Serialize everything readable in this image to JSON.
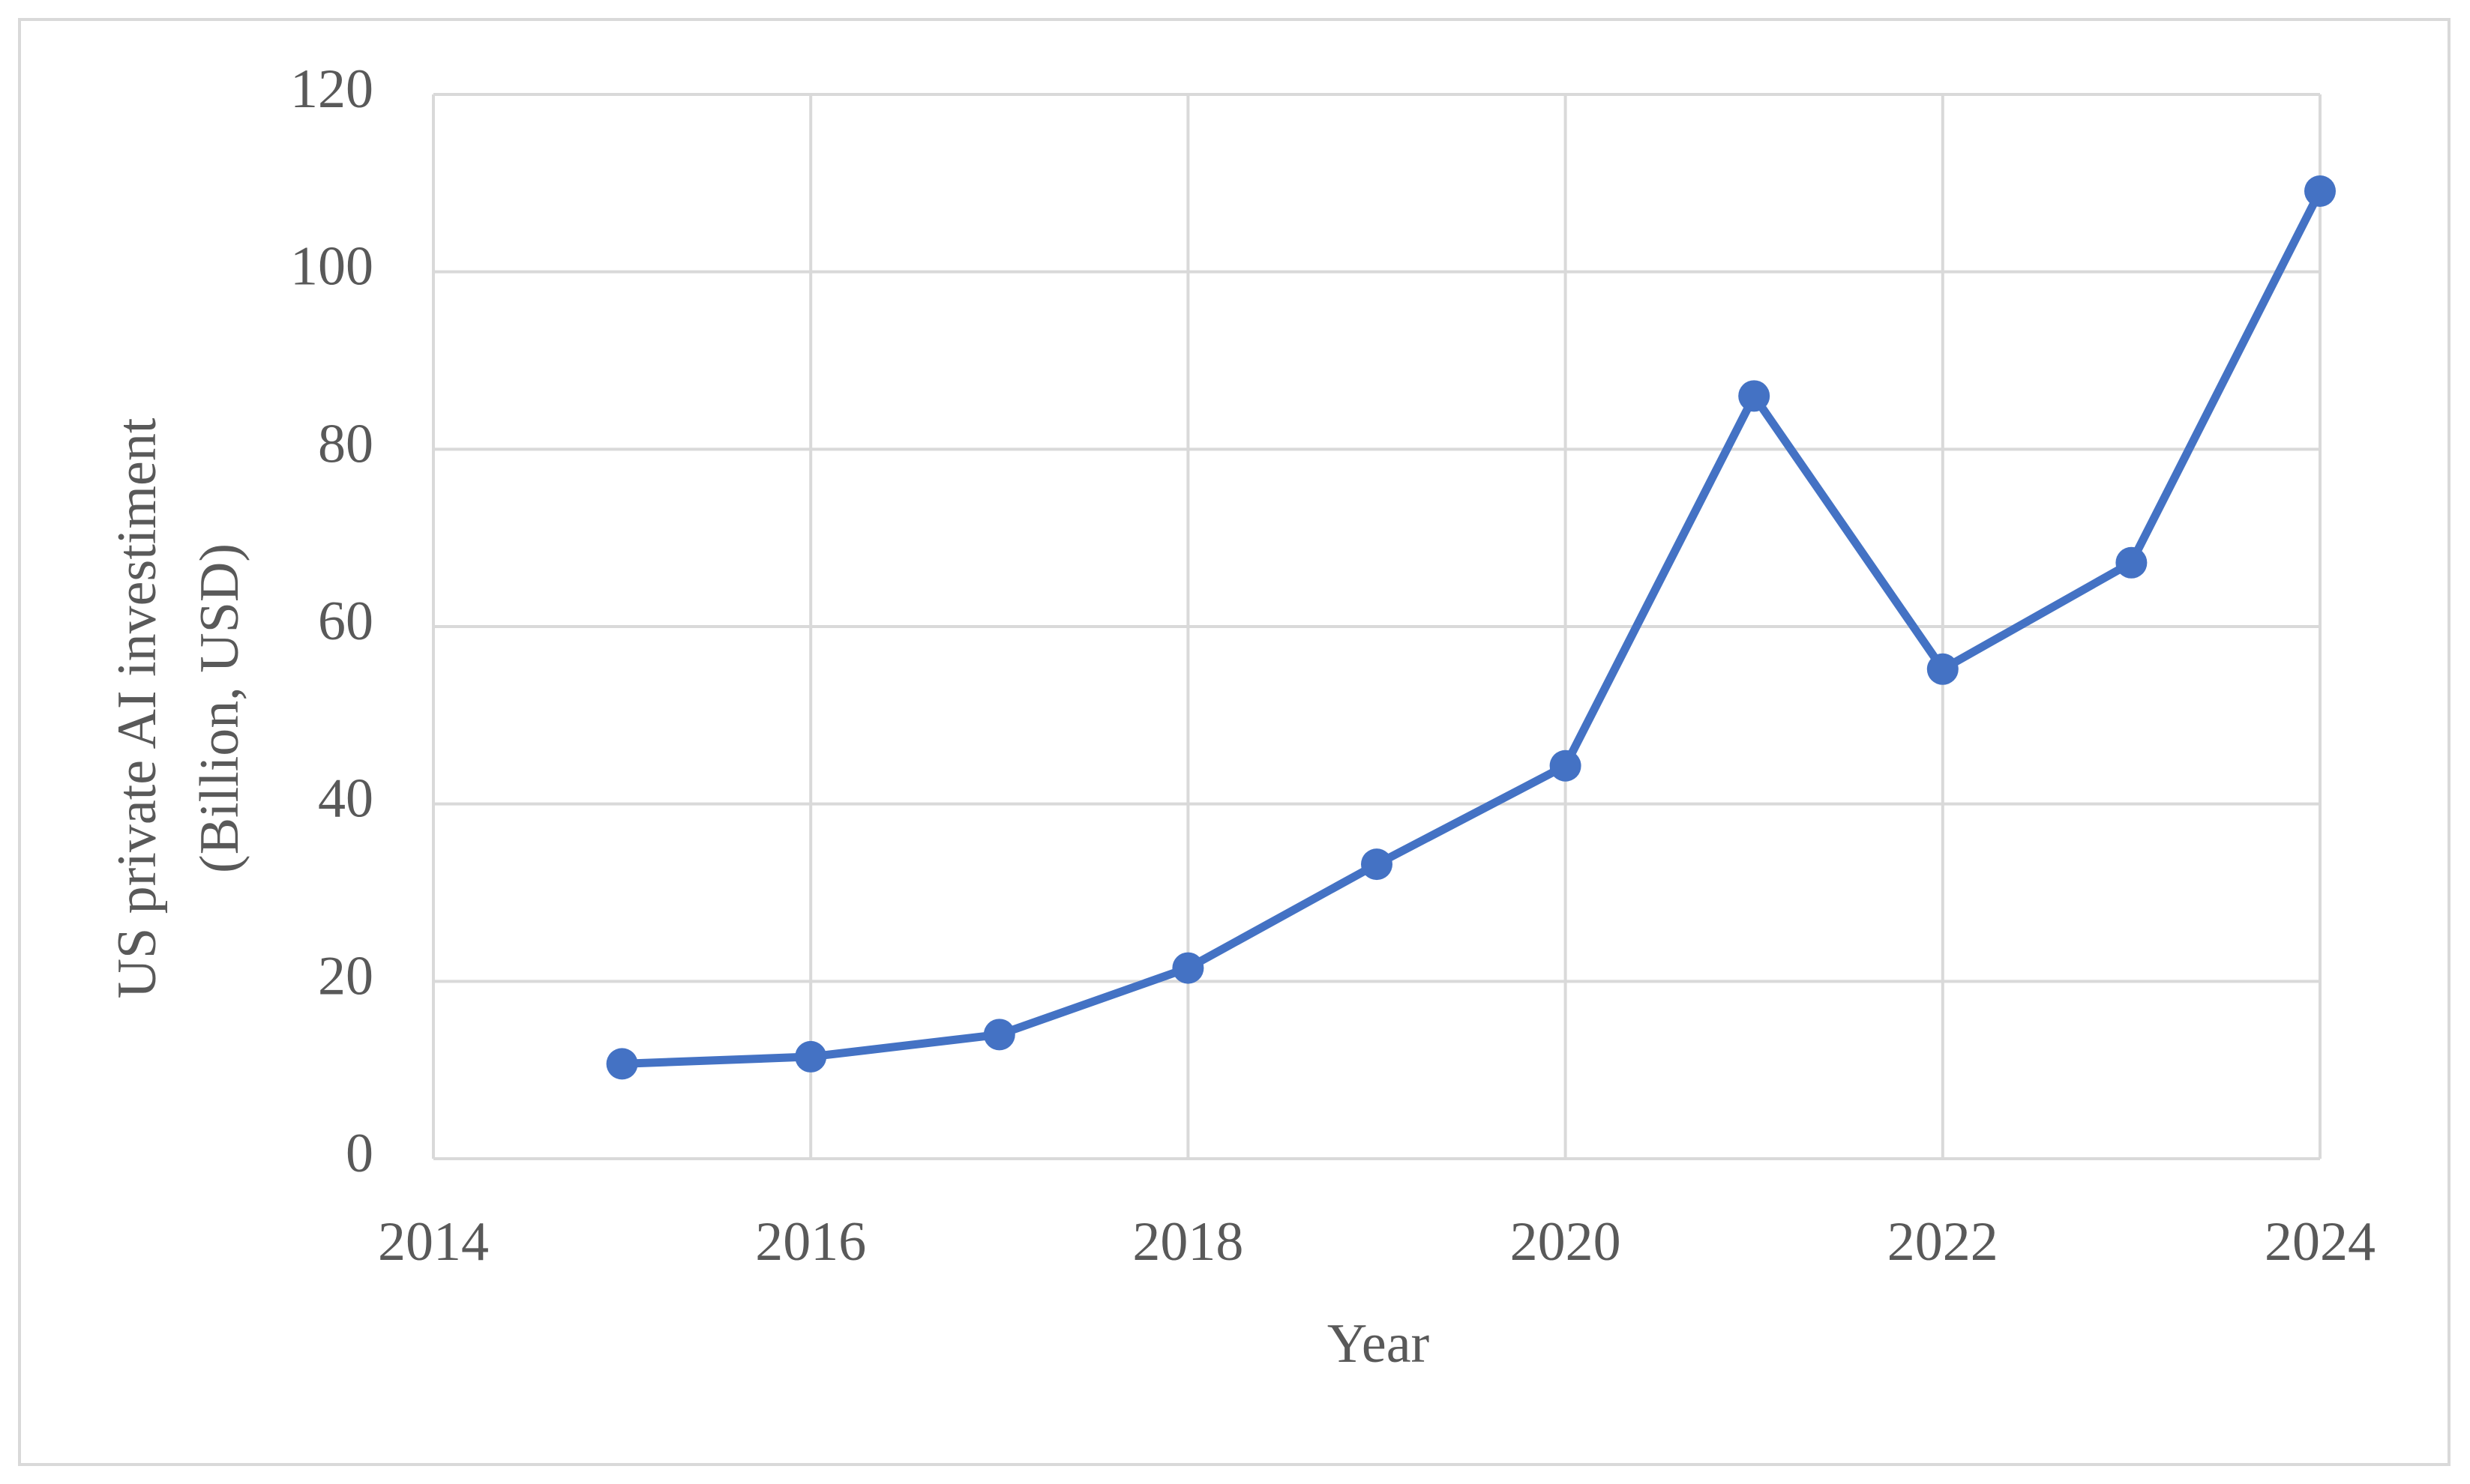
{
  "chart_data": {
    "type": "line",
    "x": [
      2015,
      2016,
      2017,
      2018,
      2019,
      2020,
      2021,
      2022,
      2023,
      2024
    ],
    "series": [
      {
        "color": "#4472c4",
        "values": [
          10.7,
          11.5,
          14.0,
          21.5,
          33.2,
          44.3,
          86.0,
          55.2,
          67.2,
          109.1
        ]
      }
    ],
    "xlabel": "Year",
    "ylabel": [
      "US private AI investiment",
      "(Billion, USD)"
    ],
    "xlim": [
      2014,
      2024
    ],
    "xticks": [
      2014,
      2016,
      2018,
      2020,
      2022,
      2024
    ],
    "ylim": [
      0,
      120
    ],
    "yticks": [
      0,
      20,
      40,
      60,
      80,
      100,
      120
    ],
    "grid": true
  }
}
